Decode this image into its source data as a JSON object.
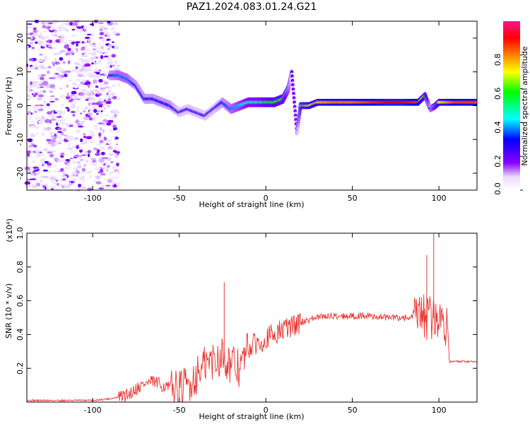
{
  "figure_title": "PAZ1.2024.083.01.24.G21",
  "colorbar": {
    "label": "Normalized spectral amplitude",
    "ticks": [
      "0.0",
      "0.2",
      "0.4",
      "0.6",
      "0.8"
    ],
    "tick_values": [
      0.0,
      0.2,
      0.4,
      0.6,
      0.8
    ],
    "colors": [
      "#ffffff",
      "#8b00ff",
      "#0000ff",
      "#00ffff",
      "#00ff00",
      "#ffff00",
      "#ff8000",
      "#ff0000",
      "#ff1493"
    ]
  },
  "chart_data": [
    {
      "type": "heatmap",
      "xlabel": "Height of straight line (km)",
      "ylabel": "Frequency (Hz)",
      "xlim": [
        -138,
        122
      ],
      "ylim": [
        -25,
        25
      ],
      "xticks": [
        -100,
        -50,
        0,
        50,
        100
      ],
      "xtick_labels": [
        "-100",
        "-50",
        "0",
        "50",
        "100"
      ],
      "yticks": [
        -20,
        -10,
        0,
        10,
        20
      ],
      "ytick_labels": [
        "-20",
        "-10",
        "0",
        "10",
        "20"
      ],
      "ridge": {
        "x": [
          -90,
          -85,
          -80,
          -75,
          -70,
          -65,
          -60,
          -55,
          -50,
          -45,
          -40,
          -35,
          -30,
          -25,
          -20,
          -15,
          -10,
          -5,
          0,
          5,
          10,
          13,
          15,
          18,
          20,
          25,
          30,
          40,
          50,
          60,
          70,
          80,
          88,
          92,
          95,
          98,
          100,
          110,
          122
        ],
        "y": [
          9,
          9,
          8,
          6,
          2,
          2,
          1,
          0,
          -2,
          -1,
          -2,
          -3,
          -1,
          1,
          -1,
          0,
          1,
          1,
          1,
          1,
          2,
          5,
          10,
          -8,
          0,
          0,
          1,
          1,
          1,
          1,
          1,
          1,
          1,
          3,
          -1,
          0,
          1,
          1,
          1
        ],
        "amplitude": [
          0.3,
          0.35,
          0.35,
          0.3,
          0.3,
          0.3,
          0.3,
          0.3,
          0.25,
          0.25,
          0.25,
          0.25,
          0.25,
          0.3,
          0.35,
          0.4,
          0.45,
          0.45,
          0.55,
          0.6,
          0.55,
          0.4,
          0.2,
          0.15,
          0.5,
          0.7,
          0.75,
          0.8,
          0.8,
          0.85,
          0.9,
          0.9,
          0.85,
          0.6,
          0.3,
          0.5,
          0.7,
          0.85,
          0.85
        ]
      },
      "noise_region": [
        -138,
        -85
      ]
    },
    {
      "type": "line",
      "xlabel": "Height of straight line (km)",
      "ylabel": "SNR (10 * v/v)",
      "yscale_note": "(x10⁴)",
      "xlim": [
        -138,
        122
      ],
      "ylim": [
        0,
        1.0
      ],
      "xticks": [
        -100,
        -50,
        0,
        50,
        100
      ],
      "xtick_labels": [
        "-100",
        "-50",
        "0",
        "50",
        "100"
      ],
      "yticks": [
        0.2,
        0.4,
        0.6,
        0.8,
        1.0
      ],
      "ytick_labels": [
        "0.2",
        "0.4",
        "0.6",
        "0.8",
        "1.0"
      ],
      "color": "#e8332f",
      "series": [
        {
          "x": [
            -138,
            -120,
            -100,
            -90,
            -80,
            -75,
            -70,
            -65,
            -60,
            -55,
            -50,
            -45,
            -40,
            -35,
            -30,
            -25,
            -20,
            -15,
            -10,
            -5,
            0,
            5,
            10,
            15,
            20,
            25,
            30,
            35,
            40,
            50,
            60,
            70,
            80,
            85,
            90,
            95,
            100,
            105,
            106,
            110,
            122
          ],
          "y": [
            0.01,
            0.01,
            0.01,
            0.02,
            0.04,
            0.08,
            0.11,
            0.12,
            0.1,
            0.08,
            0.07,
            0.1,
            0.16,
            0.22,
            0.25,
            0.28,
            0.22,
            0.2,
            0.32,
            0.35,
            0.38,
            0.4,
            0.43,
            0.45,
            0.47,
            0.49,
            0.5,
            0.51,
            0.51,
            0.51,
            0.51,
            0.5,
            0.5,
            0.5,
            0.5,
            0.5,
            0.49,
            0.47,
            0.24,
            0.24,
            0.24
          ]
        }
      ],
      "spikes": [
        {
          "x": -24,
          "y": 0.71
        },
        {
          "x": 93,
          "y": 0.87
        },
        {
          "x": 97,
          "y": 1.0
        },
        {
          "x": 90,
          "y": 0.62
        }
      ]
    }
  ]
}
